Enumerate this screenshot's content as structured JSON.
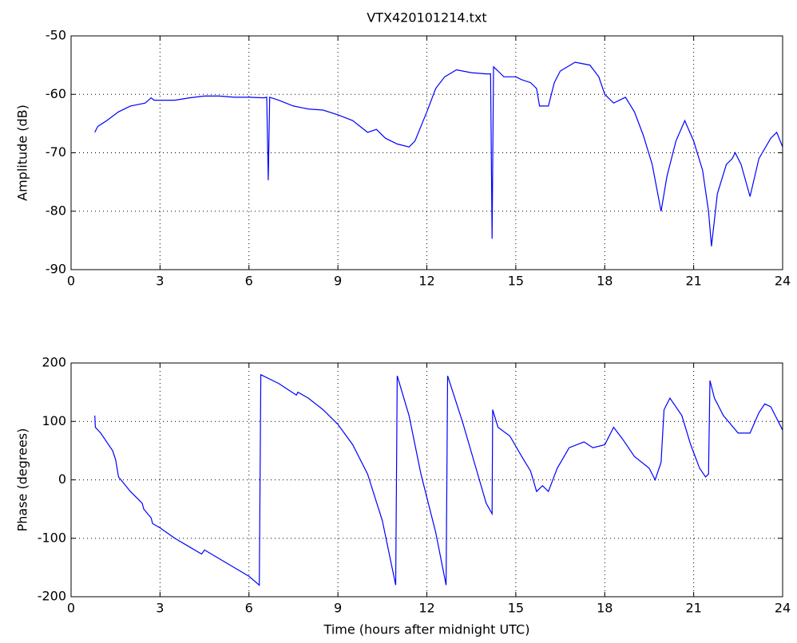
{
  "chart_data": [
    {
      "type": "line",
      "title": "VTX420101214.txt",
      "y_label": "Amplitude (dB)",
      "color": "#0000ff",
      "grid": true,
      "xlim": [
        0,
        24
      ],
      "xticks": [
        0,
        3,
        6,
        9,
        12,
        15,
        18,
        21,
        24
      ],
      "ylim": [
        -90,
        -50
      ],
      "yticks": [
        -90,
        -80,
        -70,
        -60,
        -50
      ],
      "x": [
        0.8,
        0.9,
        1.2,
        1.6,
        2.0,
        2.5,
        2.7,
        2.8,
        3.5,
        4.0,
        4.5,
        5.0,
        5.5,
        6.0,
        6.5,
        6.6,
        6.65,
        6.7,
        7.0,
        7.5,
        8.0,
        8.5,
        9.0,
        9.5,
        10.0,
        10.3,
        10.6,
        11.0,
        11.4,
        11.6,
        12.0,
        12.3,
        12.6,
        13.0,
        13.5,
        14.0,
        14.15,
        14.2,
        14.25,
        14.4,
        14.6,
        15.0,
        15.2,
        15.5,
        15.7,
        15.8,
        16.1,
        16.3,
        16.5,
        17.0,
        17.5,
        17.8,
        18.0,
        18.3,
        18.7,
        19.0,
        19.3,
        19.6,
        19.9,
        20.1,
        20.4,
        20.7,
        21.0,
        21.3,
        21.5,
        21.6,
        21.8,
        22.1,
        22.3,
        22.4,
        22.6,
        22.9,
        23.2,
        23.6,
        23.8,
        24.0
      ],
      "values": [
        -66.5,
        -65.5,
        -64.5,
        -63,
        -62,
        -61.5,
        -60.6,
        -61,
        -61,
        -60.6,
        -60.3,
        -60.3,
        -60.5,
        -60.5,
        -60.6,
        -60.5,
        -74.7,
        -60.5,
        -61,
        -62,
        -62.5,
        -62.7,
        -63.5,
        -64.5,
        -66.5,
        -66,
        -67.5,
        -68.5,
        -69,
        -68,
        -63,
        -59,
        -57,
        -55.8,
        -56.3,
        -56.5,
        -56.5,
        -84.7,
        -55.3,
        -56,
        -57,
        -57,
        -57.5,
        -58,
        -59,
        -62,
        -62,
        -58,
        -56,
        -54.5,
        -55,
        -57,
        -60,
        -61.5,
        -60.5,
        -63,
        -67,
        -72,
        -80,
        -74,
        -68,
        -64.5,
        -68,
        -73,
        -80,
        -86,
        -77,
        -72,
        -71,
        -70,
        -72,
        -77.5,
        -71,
        -67.5,
        -66.5,
        -69
      ]
    },
    {
      "type": "line",
      "x_label": "Time (hours after midnight UTC)",
      "y_label": "Phase (degrees)",
      "color": "#0000ff",
      "grid": true,
      "xlim": [
        0,
        24
      ],
      "xticks": [
        0,
        3,
        6,
        9,
        12,
        15,
        18,
        21,
        24
      ],
      "ylim": [
        -200,
        200
      ],
      "yticks": [
        -200,
        -100,
        0,
        100,
        200
      ],
      "x": [
        0.8,
        0.82,
        1.0,
        1.4,
        1.5,
        1.6,
        2.0,
        2.4,
        2.45,
        2.7,
        2.75,
        3.0,
        3.5,
        4.0,
        4.4,
        4.5,
        5.0,
        5.5,
        6.0,
        6.35,
        6.4,
        7.0,
        7.6,
        7.65,
        8.0,
        8.5,
        9.0,
        9.5,
        10.0,
        10.5,
        10.95,
        11.0,
        11.4,
        11.8,
        12.3,
        12.65,
        12.7,
        13.2,
        13.6,
        14.0,
        14.2,
        14.22,
        14.4,
        14.8,
        15.2,
        15.5,
        15.7,
        15.9,
        16.1,
        16.4,
        16.8,
        17.3,
        17.6,
        18.0,
        18.3,
        18.6,
        19.0,
        19.5,
        19.7,
        19.9,
        20.0,
        20.2,
        20.6,
        20.9,
        21.2,
        21.4,
        21.5,
        21.55,
        21.7,
        22.0,
        22.5,
        22.9,
        23.2,
        23.4,
        23.6,
        24.0
      ],
      "values": [
        110,
        90,
        80,
        50,
        35,
        5,
        -20,
        -40,
        -50,
        -65,
        -75,
        -82,
        -100,
        -115,
        -127,
        -120,
        -135,
        -150,
        -165,
        -180,
        180,
        165,
        145,
        150,
        140,
        120,
        95,
        60,
        10,
        -70,
        -180,
        178,
        110,
        10,
        -90,
        -180,
        178,
        100,
        30,
        -40,
        -58,
        120,
        90,
        75,
        40,
        15,
        -20,
        -10,
        -20,
        20,
        55,
        65,
        55,
        60,
        90,
        70,
        40,
        20,
        0,
        30,
        120,
        140,
        110,
        60,
        20,
        5,
        10,
        170,
        140,
        110,
        80,
        80,
        115,
        130,
        125,
        85
      ]
    }
  ]
}
